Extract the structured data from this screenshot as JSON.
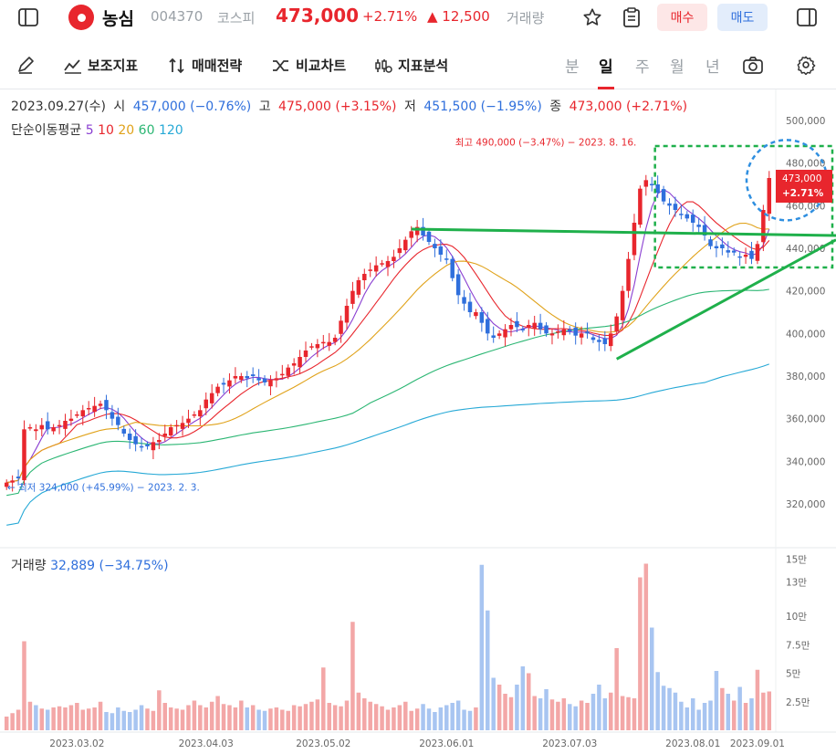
{
  "header": {
    "stock_name": "농심",
    "stock_code": "004370",
    "market": "코스피",
    "price": "473,000",
    "change_pct": "+2.71%",
    "change_amt": "▲ 12,500",
    "volume_label": "거래량",
    "buy_label": "매수",
    "sell_label": "매도",
    "icons": [
      "sidebar-icon",
      "star-icon",
      "clipboard-icon",
      "panel-icon"
    ]
  },
  "toolbar": {
    "indicator_label": "보조지표",
    "strategy_label": "매매전략",
    "compare_label": "비교차트",
    "analysis_label": "지표분석",
    "periods": [
      "분",
      "일",
      "주",
      "월",
      "년"
    ],
    "active_period": "일"
  },
  "info": {
    "date": "2023.09.27(수)",
    "open_label": "시",
    "open": "457,000 (−0.76%)",
    "high_label": "고",
    "high": "475,000 (+3.15%)",
    "low_label": "저",
    "low": "451,500 (−1.95%)",
    "close_label": "종",
    "close": "473,000 (+2.71%)",
    "ma_label": "단순이동평균",
    "ma_periods": [
      "5",
      "10",
      "20",
      "60",
      "120"
    ],
    "ma_colors": [
      "#8a3fd1",
      "#e8262d",
      "#e0a21a",
      "#2bb673",
      "#27a9d6"
    ],
    "volume_label": "거래량",
    "volume_value": "32,889 (−34.75%)"
  },
  "colors": {
    "up": "#e8262d",
    "down": "#2f6fdc",
    "volume_up": "#f3a7a7",
    "volume_down": "#a8c5f1",
    "trendline": "#1fb04b"
  },
  "chart_data": [
    {
      "type": "candlestick",
      "title": "",
      "x_tick_labels": [
        "2023.03.02",
        "2023.04.03",
        "2023.05.02",
        "2023.06.01",
        "2023.07.03",
        "2023.08.01",
        "2023.09.01"
      ],
      "y_tick_labels": [
        "320,000",
        "340,000",
        "360,000",
        "380,000",
        "400,000",
        "420,000",
        "440,000",
        "460,000",
        "480,000",
        "500,000"
      ],
      "ylim": [
        313000,
        503000
      ],
      "last_price_tag": "473,000",
      "last_change_tag": "+2.71%",
      "high_annotation": "최고 490,000 (−3.47%) − 2023. 8. 16.",
      "low_annotation": "← 최저 324,000 (+45.99%) − 2023. 2. 3.",
      "annotations": {
        "resistance_line": [
          [
            "2023.06.01",
            449000
          ],
          [
            "2023.09.27",
            446000
          ]
        ],
        "support_line": [
          [
            "2023.07.27",
            388000
          ],
          [
            "2023.09.27",
            444000
          ]
        ],
        "box": {
          "x_from": "2023.08.01",
          "x_to": "2023.09.27",
          "y_from": 431000,
          "y_to": 488000
        },
        "circle": {
          "x": "2023.09.26",
          "y": 472000
        }
      },
      "close": [
        330000,
        331000,
        332000,
        355000,
        356000,
        355000,
        357000,
        355000,
        356000,
        357000,
        359000,
        360000,
        362000,
        364000,
        365000,
        366000,
        367000,
        364000,
        360000,
        357000,
        353000,
        350000,
        348000,
        347000,
        347000,
        349000,
        350000,
        353000,
        356000,
        357000,
        358000,
        360000,
        362000,
        364000,
        369000,
        372000,
        375000,
        376000,
        378000,
        380000,
        380000,
        379000,
        380000,
        378000,
        377000,
        378000,
        379000,
        381000,
        384000,
        386000,
        389000,
        392000,
        394000,
        395000,
        396000,
        396000,
        398000,
        406000,
        413000,
        420000,
        425000,
        428000,
        430000,
        432000,
        433000,
        434000,
        436000,
        440000,
        444000,
        448000,
        450000,
        446000,
        443000,
        440000,
        437000,
        435000,
        426000,
        418000,
        414000,
        410000,
        410000,
        405000,
        400000,
        398000,
        400000,
        402000,
        404000,
        403000,
        402000,
        404000,
        405000,
        402000,
        400000,
        400000,
        401000,
        402000,
        401000,
        399000,
        400000,
        400000,
        397000,
        396000,
        395000,
        400000,
        408000,
        420000,
        435000,
        452000,
        468000,
        472000,
        470000,
        466000,
        462000,
        460000,
        458000,
        456000,
        454000,
        452000,
        450000,
        446000,
        441000,
        440000,
        440000,
        438000,
        438000,
        436000,
        437000,
        435000,
        442000,
        458000,
        473000
      ],
      "series": [
        {
          "name": "거래량",
          "values": [
            1200,
            1500,
            1800,
            7800,
            2500,
            2200,
            1900,
            1800,
            2000,
            2100,
            2000,
            2200,
            2400,
            1800,
            1900,
            2000,
            2500,
            1600,
            1500,
            2000,
            1700,
            1600,
            1800,
            2200,
            1900,
            1700,
            3500,
            2400,
            2000,
            1900,
            1800,
            2200,
            2600,
            2200,
            2000,
            2500,
            3000,
            2300,
            2200,
            2000,
            2600,
            2000,
            2200,
            1800,
            1700,
            1900,
            2000,
            1800,
            1700,
            2200,
            2100,
            2300,
            2500,
            2700,
            5500,
            2400,
            2200,
            2100,
            2600,
            9500,
            3300,
            2800,
            2500,
            2300,
            2100,
            1800,
            2000,
            2200,
            2500,
            1700,
            1900,
            2300,
            1900,
            1600,
            2000,
            2200,
            2400,
            2600,
            1800,
            1700,
            2000,
            14500,
            10500,
            4600,
            4000,
            3200,
            2900,
            4000,
            5600,
            5000,
            3000,
            2800,
            3600,
            2700,
            2500,
            2800,
            2300,
            2100,
            2600,
            2400,
            3200,
            4000,
            2800,
            3300,
            7200,
            3000,
            2900,
            2800,
            13400,
            14600,
            9000,
            5100,
            3900,
            3700,
            3300,
            2500,
            2000,
            2800,
            1800,
            2400,
            2600,
            5200,
            3700,
            3200,
            2600,
            3800,
            2400,
            2800,
            5300,
            3300,
            3400
          ]
        }
      ],
      "volume_y_tick_labels": [
        "2.5만",
        "5만",
        "7.5만",
        "10만",
        "13만",
        "15만"
      ]
    }
  ]
}
